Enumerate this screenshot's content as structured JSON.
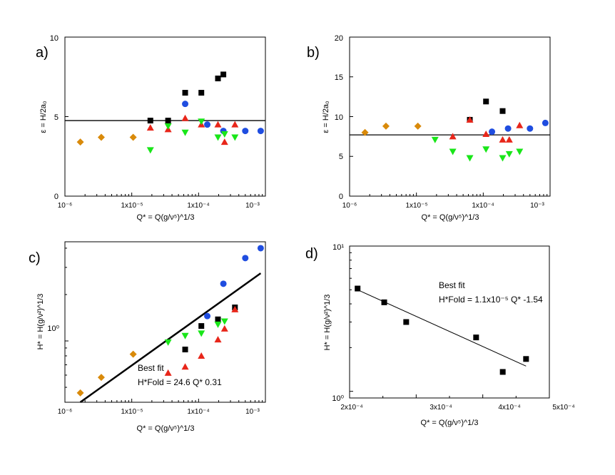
{
  "colors": {
    "black": "#000000",
    "blue": "#1f4de0",
    "red": "#e8261a",
    "green": "#19e619",
    "orange": "#d98a0a"
  },
  "chart_data": [
    {
      "panel": "a)",
      "type": "scatter",
      "xscale": "log",
      "xlim": [
        1e-06,
        0.001
      ],
      "ylim": [
        0,
        10
      ],
      "xticks": [
        "10⁻⁶",
        "1x10⁻⁵",
        "1x10⁻⁴",
        "10⁻³"
      ],
      "yticks": [
        "0",
        "5",
        "10"
      ],
      "xlabel": "Q* = Q(g/ν⁵)^1/3",
      "ylabel": "ε = H/2a₀",
      "hline": 4.75,
      "series": [
        {
          "color": "black",
          "marker": "square",
          "points": [
            [
              1.9e-05,
              4.75
            ],
            [
              3.5e-05,
              4.75
            ],
            [
              6.3e-05,
              6.5
            ],
            [
              0.00011,
              6.5
            ],
            [
              0.000195,
              7.4
            ],
            [
              0.000235,
              7.65
            ]
          ]
        },
        {
          "color": "blue",
          "marker": "circle",
          "points": [
            [
              6.3e-05,
              5.8
            ],
            [
              0.000135,
              4.5
            ],
            [
              0.000235,
              4.1
            ],
            [
              0.0005,
              4.1
            ],
            [
              0.00085,
              4.1
            ]
          ]
        },
        {
          "color": "red",
          "marker": "triangle-up",
          "points": [
            [
              1.9e-05,
              4.3
            ],
            [
              3.5e-05,
              4.2
            ],
            [
              6.3e-05,
              4.9
            ],
            [
              0.00011,
              4.5
            ],
            [
              0.000195,
              4.5
            ],
            [
              0.000245,
              3.4
            ],
            [
              0.00035,
              4.5
            ]
          ]
        },
        {
          "color": "green",
          "marker": "triangle-down",
          "points": [
            [
              1.9e-05,
              2.9
            ],
            [
              3.5e-05,
              4.4
            ],
            [
              6.3e-05,
              4.0
            ],
            [
              0.00011,
              4.7
            ],
            [
              0.000195,
              3.7
            ],
            [
              0.000245,
              3.9
            ],
            [
              0.00035,
              3.7
            ]
          ]
        },
        {
          "color": "orange",
          "marker": "diamond",
          "points": [
            [
              1.7e-06,
              3.4
            ],
            [
              3.5e-06,
              3.7
            ],
            [
              1.05e-05,
              3.7
            ]
          ]
        }
      ]
    },
    {
      "panel": "b)",
      "type": "scatter",
      "xscale": "log",
      "xlim": [
        1e-06,
        0.001
      ],
      "ylim": [
        0,
        20
      ],
      "xticks": [
        "10⁻⁶",
        "1x10⁻⁵",
        "1x10⁻⁴",
        "10⁻³"
      ],
      "yticks": [
        "0",
        "5",
        "10",
        "15",
        "20"
      ],
      "xlabel": "Q* = Q(g/ν⁵)^1/3",
      "ylabel": "ε = H/2a₀",
      "hline": 7.7,
      "series": [
        {
          "color": "black",
          "marker": "square",
          "points": [
            [
              6.3e-05,
              9.6
            ],
            [
              0.00011,
              11.9
            ],
            [
              0.000195,
              10.7
            ]
          ]
        },
        {
          "color": "blue",
          "marker": "circle",
          "points": [
            [
              0.000135,
              8.1
            ],
            [
              0.000235,
              8.5
            ],
            [
              0.0005,
              8.5
            ],
            [
              0.00085,
              9.2
            ]
          ]
        },
        {
          "color": "red",
          "marker": "triangle-up",
          "points": [
            [
              3.5e-05,
              7.5
            ],
            [
              6.3e-05,
              9.6
            ],
            [
              0.00011,
              7.8
            ],
            [
              0.000195,
              7.1
            ],
            [
              0.000245,
              7.1
            ],
            [
              0.00035,
              8.9
            ]
          ]
        },
        {
          "color": "green",
          "marker": "triangle-down",
          "points": [
            [
              1.9e-05,
              7.1
            ],
            [
              3.5e-05,
              5.6
            ],
            [
              6.3e-05,
              4.8
            ],
            [
              0.00011,
              5.9
            ],
            [
              0.000195,
              4.8
            ],
            [
              0.000245,
              5.3
            ],
            [
              0.00035,
              5.6
            ]
          ]
        },
        {
          "color": "orange",
          "marker": "diamond",
          "points": [
            [
              1.7e-06,
              8.0
            ],
            [
              3.5e-06,
              8.8
            ],
            [
              1.05e-05,
              8.8
            ]
          ]
        }
      ]
    },
    {
      "panel": "c)",
      "type": "scatter",
      "xscale": "log",
      "yscale": "log",
      "xlim": [
        1e-06,
        0.001
      ],
      "ylim": [
        0.4,
        4.4
      ],
      "xticks": [
        "10⁻⁶",
        "1x10⁻⁵",
        "1x10⁻⁴",
        "10⁻³"
      ],
      "yticks": [
        "10⁰"
      ],
      "xlabel": "Q* = Q(g/ν⁵)^1/3",
      "ylabel": "H* = H(g/ν²)^1/3",
      "fit": {
        "coef": 24.6,
        "exp": 0.31,
        "xrange": [
          1.7e-06,
          0.00085
        ]
      },
      "annotation_title": "Best fit",
      "annotation_eq": "H*Fold = 24.6 Q* 0.31",
      "series": [
        {
          "color": "black",
          "marker": "square",
          "points": [
            [
              6.3e-05,
              0.88
            ],
            [
              0.00011,
              1.25
            ],
            [
              0.000195,
              1.38
            ],
            [
              0.00035,
              1.65
            ]
          ]
        },
        {
          "color": "blue",
          "marker": "circle",
          "points": [
            [
              0.000135,
              1.45
            ],
            [
              0.000235,
              2.35
            ],
            [
              0.0005,
              3.45
            ],
            [
              0.00085,
              4.0
            ]
          ]
        },
        {
          "color": "red",
          "marker": "triangle-up",
          "points": [
            [
              3.5e-05,
              0.62
            ],
            [
              6.3e-05,
              0.68
            ],
            [
              0.00011,
              0.8
            ],
            [
              0.000195,
              1.02
            ],
            [
              0.000245,
              1.2
            ],
            [
              0.00035,
              1.6
            ]
          ]
        },
        {
          "color": "green",
          "marker": "triangle-down",
          "points": [
            [
              3.5e-05,
              0.98
            ],
            [
              6.3e-05,
              1.08
            ],
            [
              0.00011,
              1.12
            ],
            [
              0.000195,
              1.28
            ],
            [
              0.000245,
              1.34
            ]
          ]
        },
        {
          "color": "orange",
          "marker": "diamond",
          "points": [
            [
              1.7e-06,
              0.46
            ],
            [
              3.5e-06,
              0.58
            ],
            [
              1.05e-05,
              0.82
            ]
          ]
        }
      ]
    },
    {
      "panel": "d)",
      "type": "scatter",
      "xscale": "linear",
      "yscale": "log",
      "xlim": [
        0.0002,
        0.0005
      ],
      "ylim": [
        0.9,
        10
      ],
      "xticks": [
        "2x10⁻⁴",
        "3x10⁻⁴",
        "4x10⁻⁴",
        "5x10⁻⁴"
      ],
      "yticks": [
        "10⁰",
        "10¹"
      ],
      "xlabel": "Q* = Q(g/ν⁵)^1/3",
      "ylabel": "H* = H(g/ν²)^1/3",
      "fit": {
        "coef": 1.1e-05,
        "exp": -1.54,
        "xrange": [
          0.000212,
          0.000465
        ]
      },
      "annotation_title": "Best fit",
      "annotation_eq": "H*Fold = 1.1x10⁻⁵ Q* -1.54",
      "series": [
        {
          "color": "black",
          "marker": "square",
          "points": [
            [
              0.000212,
              5.1
            ],
            [
              0.000252,
              4.1
            ],
            [
              0.000285,
              3.0
            ],
            [
              0.00039,
              2.35
            ],
            [
              0.00043,
              1.36
            ],
            [
              0.000465,
              1.67
            ]
          ]
        }
      ]
    }
  ]
}
